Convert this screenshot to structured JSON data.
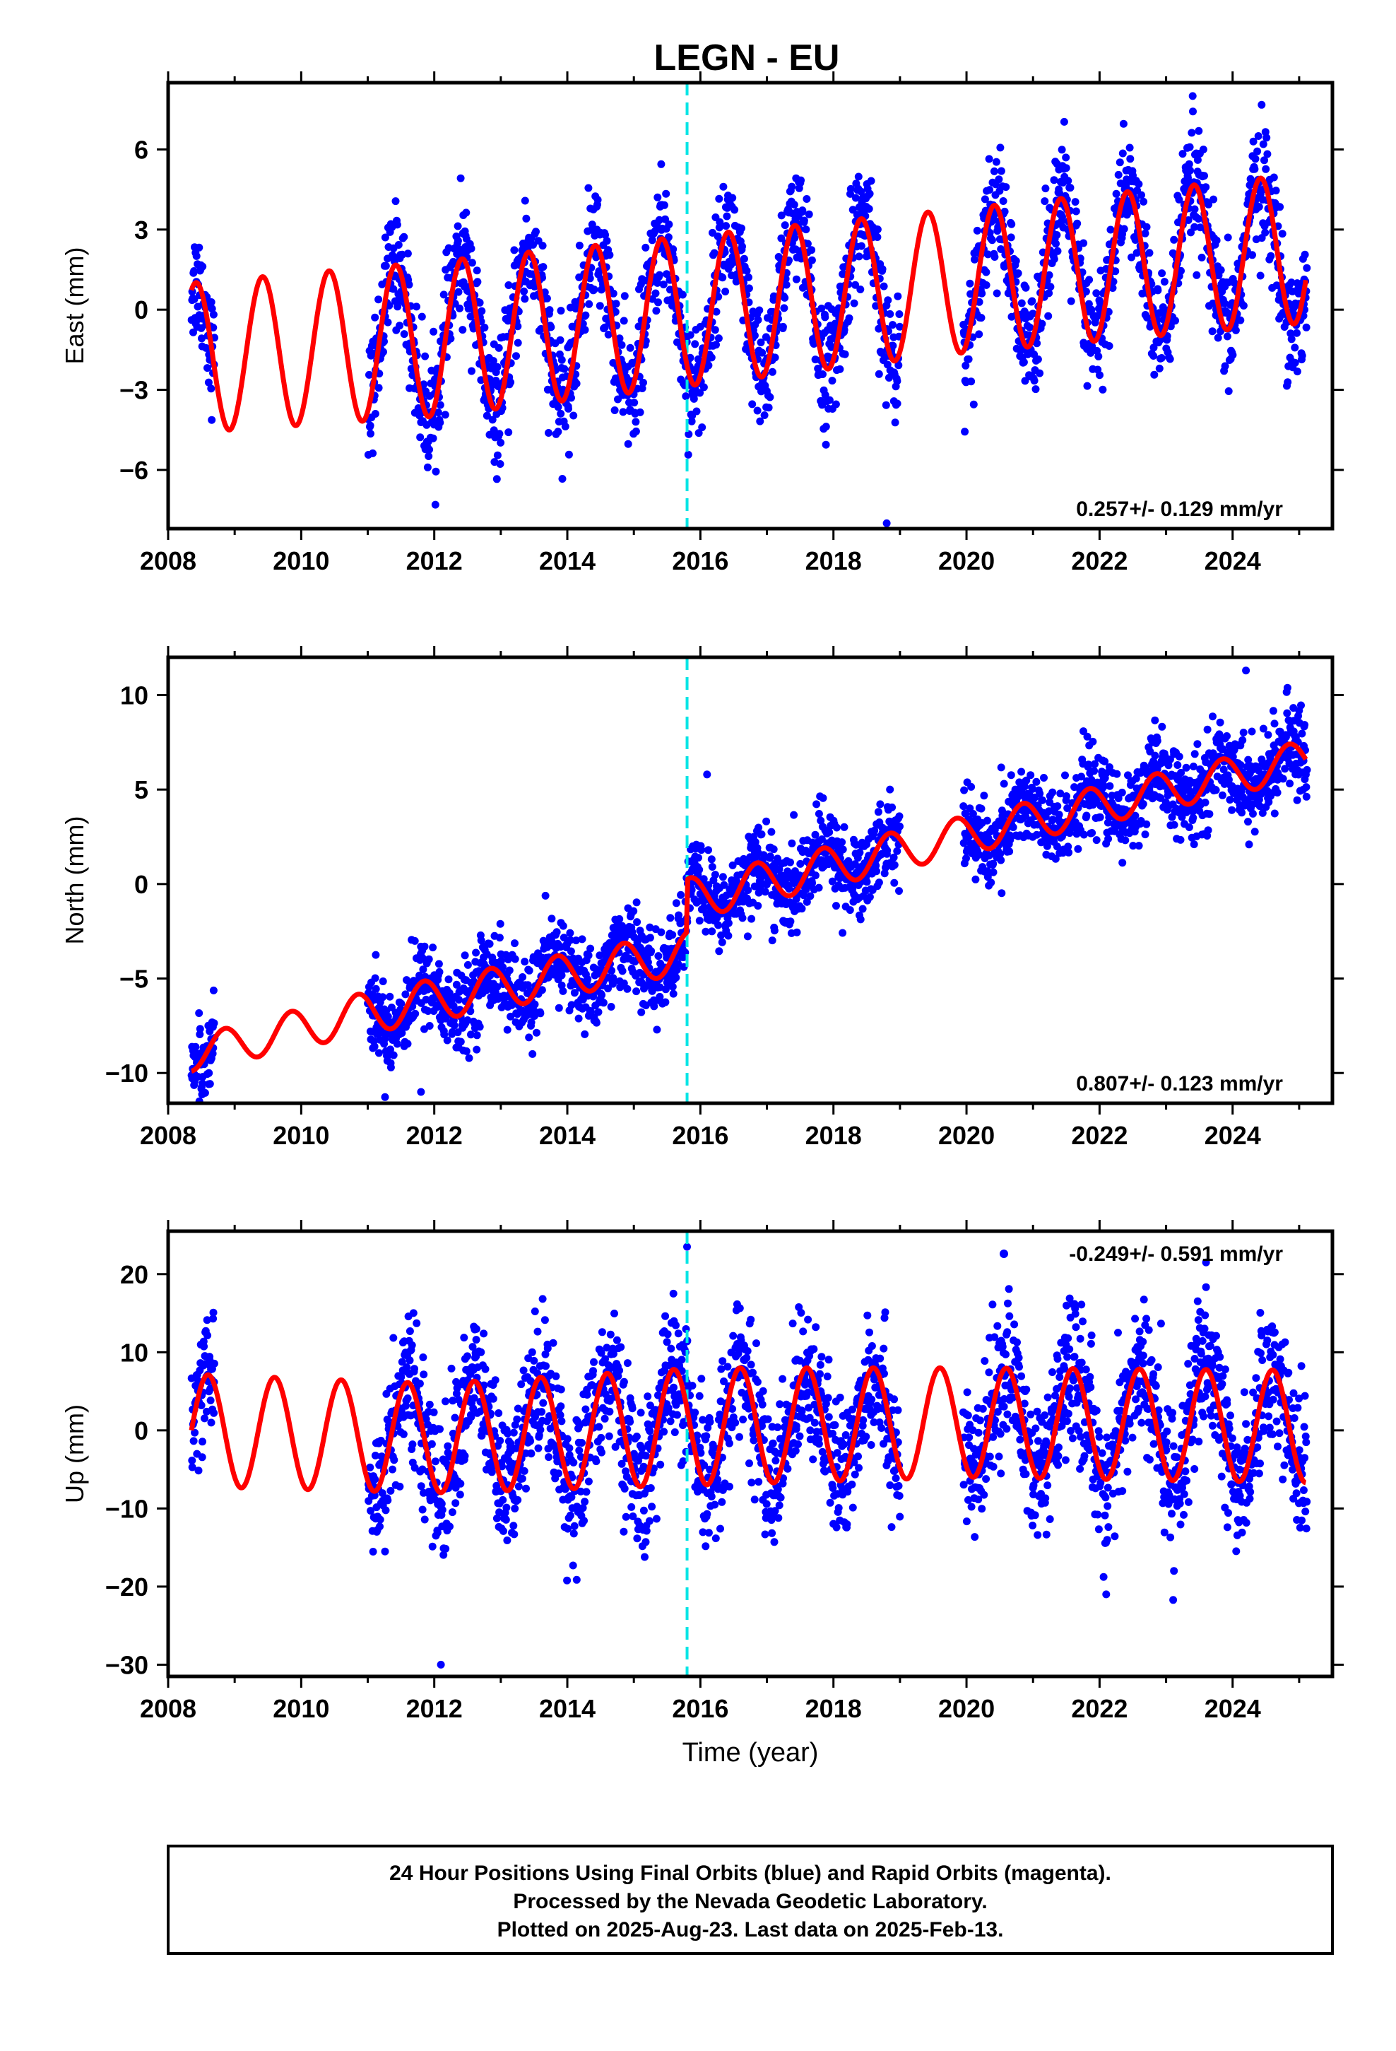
{
  "title": "LEGN - EU",
  "colors": {
    "final_orbits": "#0000ff",
    "model": "#ff0000",
    "event_line": "#00e5e5",
    "frame": "#000000"
  },
  "footer": {
    "line1": "24 Hour Positions Using Final Orbits (blue) and Rapid Orbits (magenta).",
    "line2": "Processed by the Nevada Geodetic Laboratory.",
    "line3": "Plotted on 2025-Aug-23. Last data on 2025-Feb-13."
  },
  "chart_data": [
    {
      "type": "scatter",
      "component": "east",
      "ylabel": "East (mm)",
      "xlabel": "",
      "rate_label": "0.257+/- 0.129 mm/yr",
      "rate_position": "bottom-right",
      "xlim": [
        2008.0,
        2025.5
      ],
      "ylim": [
        -8.2,
        8.5
      ],
      "x_ticks": [
        2008,
        2010,
        2012,
        2014,
        2016,
        2018,
        2020,
        2022,
        2024
      ],
      "x_tick_labels": [
        "2008",
        "2010",
        "2012",
        "2014",
        "2016",
        "2018",
        "2020",
        "2022",
        "2024"
      ],
      "y_ticks": [
        -6,
        -3,
        0,
        3,
        6
      ],
      "y_tick_labels": [
        "−6",
        "−3",
        "0",
        "3",
        "6"
      ],
      "event_line_x": 2015.8,
      "data_segments": [
        [
          2008.35,
          2008.7
        ],
        [
          2011.0,
          2019.0
        ],
        [
          2019.95,
          2025.12
        ]
      ],
      "model": {
        "description": "linear trend plus annual sinusoid",
        "anchor_years": [
          2008.35,
          2012.0,
          2016.0,
          2020.0,
          2025.1
        ],
        "offset_mm": [
          -1.8,
          -1.1,
          0.0,
          1.1,
          2.3
        ],
        "annual_amplitude_mm": [
          2.8,
          2.9,
          2.8,
          2.7,
          2.8
        ],
        "peak_phase_year_fraction": 0.42
      },
      "scatter_noise_mm": 1.1,
      "point_count": 2300,
      "outliers": [
        {
          "x": 2018.8,
          "y": -8.0
        },
        {
          "x": 2023.4,
          "y": 8.0
        }
      ]
    },
    {
      "type": "scatter",
      "component": "north",
      "ylabel": "North (mm)",
      "xlabel": "",
      "rate_label": "0.807+/- 0.123 mm/yr",
      "rate_position": "bottom-right",
      "xlim": [
        2008.0,
        2025.5
      ],
      "ylim": [
        -11.6,
        12.0
      ],
      "x_ticks": [
        2008,
        2010,
        2012,
        2014,
        2016,
        2018,
        2020,
        2022,
        2024
      ],
      "x_tick_labels": [
        "2008",
        "2010",
        "2012",
        "2014",
        "2016",
        "2018",
        "2020",
        "2022",
        "2024"
      ],
      "y_ticks": [
        -10,
        -5,
        0,
        5,
        10
      ],
      "y_tick_labels": [
        "−10",
        "−5",
        "0",
        "5",
        "10"
      ],
      "event_line_x": 2015.8,
      "data_segments": [
        [
          2008.35,
          2008.7
        ],
        [
          2011.0,
          2019.0
        ],
        [
          2019.95,
          2025.12
        ]
      ],
      "model": {
        "description": "piecewise linear trend with step at event line plus annual sinusoid",
        "anchor_years": [
          2008.35,
          2011.0,
          2015.79,
          2015.81,
          2020.0,
          2025.1
        ],
        "offset_mm": [
          -9.0,
          -6.8,
          -3.6,
          -0.8,
          2.6,
          6.6
        ],
        "annual_amplitude_mm": [
          0.9,
          1.1,
          1.1,
          1.1,
          1.0,
          1.0
        ],
        "peak_phase_year_fraction": 0.85
      },
      "scatter_noise_mm": 1.1,
      "point_count": 2300,
      "outliers": [
        {
          "x": 2011.8,
          "y": -11.0
        },
        {
          "x": 2024.2,
          "y": 11.3
        },
        {
          "x": 2016.1,
          "y": 5.8
        }
      ]
    },
    {
      "type": "scatter",
      "component": "up",
      "ylabel": "Up (mm)",
      "xlabel": "Time (year)",
      "rate_label": "-0.249+/- 0.591 mm/yr",
      "rate_position": "top-right",
      "xlim": [
        2008.0,
        2025.5
      ],
      "ylim": [
        -31.5,
        25.5
      ],
      "x_ticks": [
        2008,
        2010,
        2012,
        2014,
        2016,
        2018,
        2020,
        2022,
        2024
      ],
      "x_tick_labels": [
        "2008",
        "2010",
        "2012",
        "2014",
        "2016",
        "2018",
        "2020",
        "2022",
        "2024"
      ],
      "y_ticks": [
        -30,
        -20,
        -10,
        0,
        10,
        20
      ],
      "y_tick_labels": [
        "−30",
        "−20",
        "−10",
        "0",
        "10",
        "20"
      ],
      "event_line_x": 2015.8,
      "data_segments": [
        [
          2008.35,
          2008.7
        ],
        [
          2011.0,
          2019.0
        ],
        [
          2019.95,
          2025.12
        ]
      ],
      "model": {
        "description": "near-flat trend plus annual sinusoid",
        "anchor_years": [
          2008.35,
          2012.0,
          2016.0,
          2020.0,
          2025.1
        ],
        "offset_mm": [
          0.0,
          -1.0,
          0.5,
          1.0,
          0.5
        ],
        "annual_amplitude_mm": [
          7.2,
          7.0,
          7.5,
          7.0,
          7.2
        ],
        "peak_phase_year_fraction": 0.6
      },
      "scatter_noise_mm": 4.5,
      "point_count": 2300,
      "outliers": [
        {
          "x": 2012.1,
          "y": -30.0
        },
        {
          "x": 2015.8,
          "y": 23.5
        },
        {
          "x": 2022.1,
          "y": -21.0
        },
        {
          "x": 2023.6,
          "y": 21.5
        }
      ]
    }
  ]
}
